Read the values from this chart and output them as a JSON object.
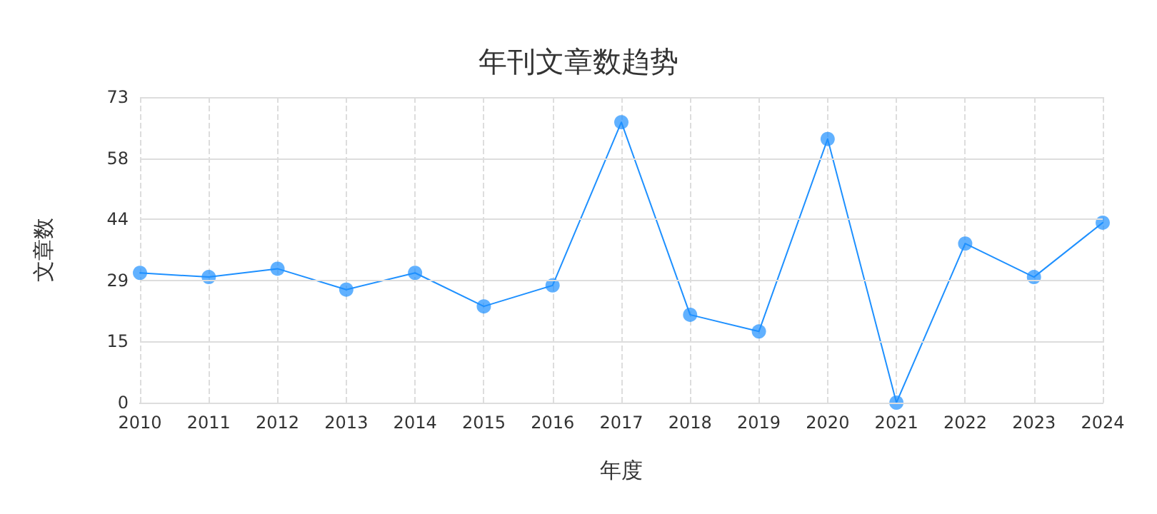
{
  "chart_data": {
    "type": "line",
    "title": "年刊文章数趋势",
    "xlabel": "年度",
    "ylabel": "文章数",
    "categories": [
      "2010",
      "2011",
      "2012",
      "2013",
      "2014",
      "2015",
      "2016",
      "2017",
      "2018",
      "2019",
      "2020",
      "2021",
      "2022",
      "2023",
      "2024"
    ],
    "series": [
      {
        "color": "#1e90ff",
        "values": [
          31,
          30,
          32,
          27,
          31,
          23,
          28,
          67,
          21,
          17,
          63,
          0,
          38,
          30,
          43
        ]
      }
    ],
    "ylim": [
      0,
      73
    ],
    "yticks": [
      0,
      {
        "value": 14.6,
        "label": "15"
      },
      {
        "value": 29.2,
        "label": "29"
      },
      {
        "value": 43.8,
        "label": "44"
      },
      {
        "value": 58.4,
        "label": "58"
      },
      73
    ],
    "grid": true,
    "marker": "circle",
    "line_style": "solid"
  }
}
